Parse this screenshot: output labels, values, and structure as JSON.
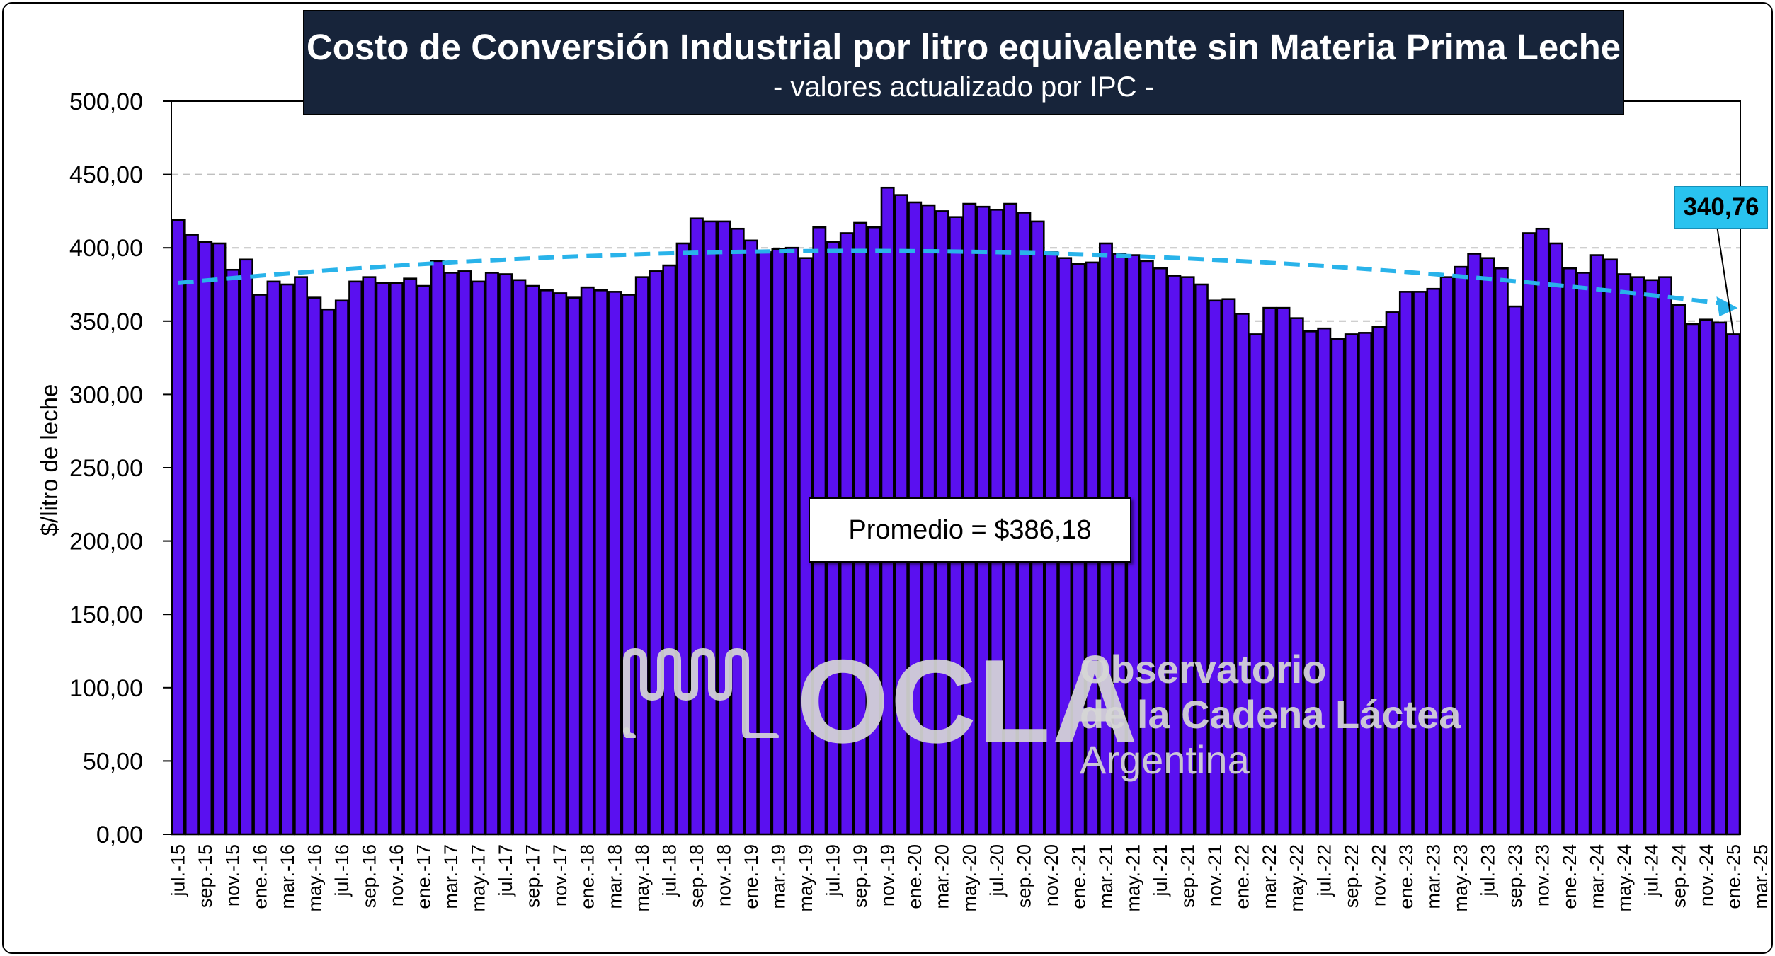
{
  "title": "Costo de Conversión Industrial por litro equivalente sin Materia Prima Leche",
  "subtitle": "- valores actualizado por IPC -",
  "average_label": "Promedio = $386,18",
  "last_value_label": "340,76",
  "logo": {
    "name": "OCLA",
    "line1": "Observatorio",
    "line2": "de la Cadena Láctea",
    "line3": "Argentina"
  },
  "colors": {
    "bar": "#5a10f0",
    "bar_outline": "#000000",
    "trend": "#29b3ea",
    "title_bg": "#17243a",
    "grid": "#bfbfbf"
  },
  "chart_data": {
    "type": "bar",
    "title": "Costo de Conversión Industrial por litro equivalente sin Materia Prima Leche",
    "subtitle": "- valores actualizado por IPC -",
    "xlabel": "",
    "ylabel": "$/litro de leche",
    "ylim": [
      0,
      500
    ],
    "y_ticks": [
      "0,00",
      "50,00",
      "100,00",
      "150,00",
      "200,00",
      "250,00",
      "300,00",
      "350,00",
      "400,00",
      "450,00",
      "500,00"
    ],
    "x_tick_labels": [
      "jul.-15",
      "sep.-15",
      "nov.-15",
      "ene.-16",
      "mar.-16",
      "may.-16",
      "jul.-16",
      "sep.-16",
      "nov.-16",
      "ene.-17",
      "mar.-17",
      "may.-17",
      "jul.-17",
      "sep.-17",
      "nov.-17",
      "ene.-18",
      "mar.-18",
      "may.-18",
      "jul.-18",
      "sep.-18",
      "nov.-18",
      "ene.-19",
      "mar.-19",
      "may.-19",
      "jul.-19",
      "sep.-19",
      "nov.-19",
      "ene.-20",
      "mar.-20",
      "may.-20",
      "jul.-20",
      "sep.-20",
      "nov.-20",
      "ene.-21",
      "mar.-21",
      "may.-21",
      "jul.-21",
      "sep.-21",
      "nov.-21",
      "ene.-22",
      "mar.-22",
      "may.-22",
      "jul.-22",
      "sep.-22",
      "nov.-22",
      "ene.-23",
      "mar.-23",
      "may.-23",
      "jul.-23",
      "sep.-23",
      "nov.-23",
      "ene.-24",
      "mar.-24",
      "may.-24",
      "jul.-24",
      "sep.-24",
      "nov.-24",
      "ene.-25",
      "mar.-25"
    ],
    "x_start": "jul.-15",
    "x_end": "mar.-25",
    "values": [
      419,
      409,
      404,
      403,
      385,
      392,
      368,
      377,
      375,
      380,
      366,
      358,
      364,
      377,
      380,
      376,
      376,
      379,
      374,
      391,
      383,
      384,
      377,
      383,
      382,
      378,
      374,
      371,
      369,
      366,
      373,
      371,
      370,
      368,
      380,
      384,
      388,
      403,
      420,
      418,
      418,
      413,
      405,
      397,
      399,
      400,
      393,
      414,
      404,
      410,
      417,
      414,
      441,
      436,
      431,
      429,
      425,
      421,
      430,
      428,
      426,
      430,
      424,
      418,
      397,
      393,
      389,
      390,
      403,
      396,
      395,
      391,
      386,
      381,
      380,
      375,
      364,
      365,
      355,
      341,
      359,
      359,
      352,
      343,
      345,
      338,
      341,
      342,
      346,
      356,
      370,
      370,
      372,
      380,
      387,
      396,
      393,
      386,
      360,
      410,
      413,
      403,
      386,
      383,
      395,
      392,
      382,
      380,
      378,
      380,
      361,
      348,
      351,
      349,
      341
    ],
    "average": 386.18,
    "last_value": 340.76,
    "trend_line": {
      "type": "polynomial",
      "start": 376,
      "peak": 397,
      "end": 360
    },
    "grid": true,
    "legend": "none"
  }
}
